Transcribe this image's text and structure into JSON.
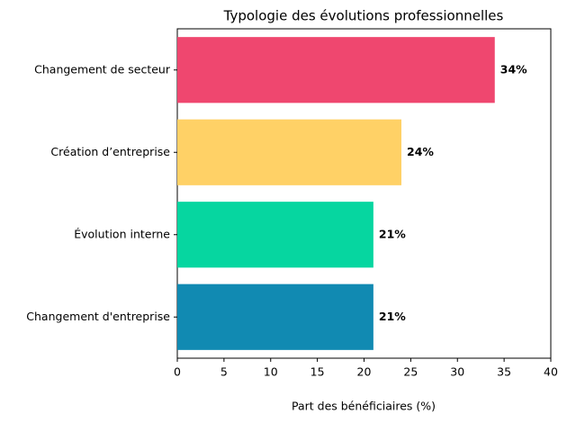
{
  "chart_data": {
    "type": "barh",
    "title": "Typologie des évolutions professionnelles",
    "x_label": "Part des bénéficiaires (%)",
    "categories": [
      "Changement de secteur",
      "Création d’entreprise",
      "Évolution interne",
      "Changement d'entreprise"
    ],
    "values": [
      34,
      24,
      21,
      21
    ],
    "value_labels": [
      "34%",
      "24%",
      "21%",
      "21%"
    ],
    "colors": [
      "#ef476f",
      "#ffd166",
      "#06d6a0",
      "#118ab2"
    ],
    "xlim": [
      0,
      40
    ],
    "xticks": [
      0,
      5,
      10,
      15,
      20,
      25,
      30,
      35,
      40
    ],
    "grid": false
  }
}
